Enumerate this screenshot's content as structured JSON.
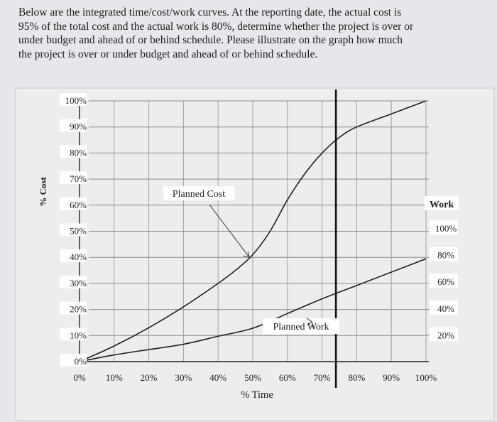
{
  "question": {
    "lines": [
      "Below are the integrated time/cost/work curves. At the reporting date, the actual cost is",
      "95% of the total cost and the actual work is 80%, determine whether the project is over or",
      "under budget and ahead of or behind schedule. Please illustrate on the graph how much",
      "the project is over or under budget and ahead of or behind schedule."
    ]
  },
  "chart_data": {
    "type": "line",
    "xlabel": "% Time",
    "ylabel": "% Cost",
    "y2label": "Work",
    "x_ticks": [
      "0%",
      "10%",
      "20%",
      "30%",
      "40%",
      "50%",
      "60%",
      "70%",
      "80%",
      "90%",
      "100%"
    ],
    "y_ticks": [
      "0%",
      "10%",
      "20%",
      "30%",
      "40%",
      "50%",
      "60%",
      "70%",
      "80%",
      "90%",
      "100%"
    ],
    "y2_ticks": [
      "20%",
      "40%",
      "60%",
      "80%",
      "100%"
    ],
    "xlim": [
      0,
      100
    ],
    "ylim": [
      0,
      100
    ],
    "y2lim": [
      0,
      100
    ],
    "grid": true,
    "reporting_date_x": 74,
    "series": [
      {
        "name": "Planned Cost",
        "axis": "left",
        "x": [
          0,
          10,
          20,
          30,
          40,
          45,
          50,
          55,
          60,
          65,
          70,
          75,
          80,
          90,
          100
        ],
        "values": [
          0,
          6,
          13,
          21,
          30,
          35,
          41,
          50,
          62,
          72,
          80,
          86,
          90,
          95,
          100
        ]
      },
      {
        "name": "Planned Work",
        "axis": "right",
        "x": [
          0,
          10,
          20,
          30,
          40,
          50,
          60,
          70,
          80,
          90,
          100
        ],
        "values": [
          0,
          5,
          9,
          13,
          19,
          25,
          36,
          47,
          57,
          67,
          77
        ]
      }
    ],
    "annotations": [
      {
        "text": "Planned Cost",
        "points_to": {
          "x": 49,
          "y": 40
        }
      },
      {
        "text": "Planned Work",
        "points_to": {
          "x": 67,
          "y": 30
        }
      }
    ]
  }
}
